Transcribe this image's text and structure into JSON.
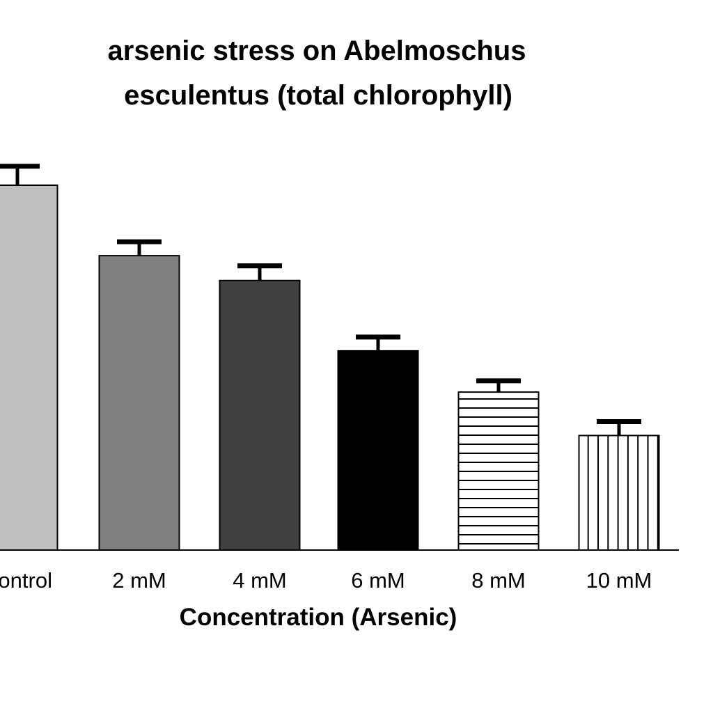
{
  "chart_data": {
    "type": "bar",
    "title_lines": [
      "arsenic stress on Abelmoschus",
      "esculentus (total chlorophyll)"
    ],
    "xlabel": "Concentration (Arsenic)",
    "ylabel": "",
    "categories": [
      "Control",
      "2 mM",
      "4 mM",
      "6 mM",
      "8 mM",
      "10 mM"
    ],
    "values": [
      100,
      80.7,
      73.9,
      54.6,
      43.3,
      31.4
    ],
    "errors": [
      5.2,
      3.8,
      4.0,
      3.8,
      3.1,
      3.8
    ],
    "ylim": [
      0,
      105
    ],
    "fills": [
      "#c0c0c0",
      "#808080",
      "#404040",
      "#000000",
      "horizontal-stripes",
      "vertical-stripes"
    ],
    "grid": false,
    "legend": "none"
  }
}
